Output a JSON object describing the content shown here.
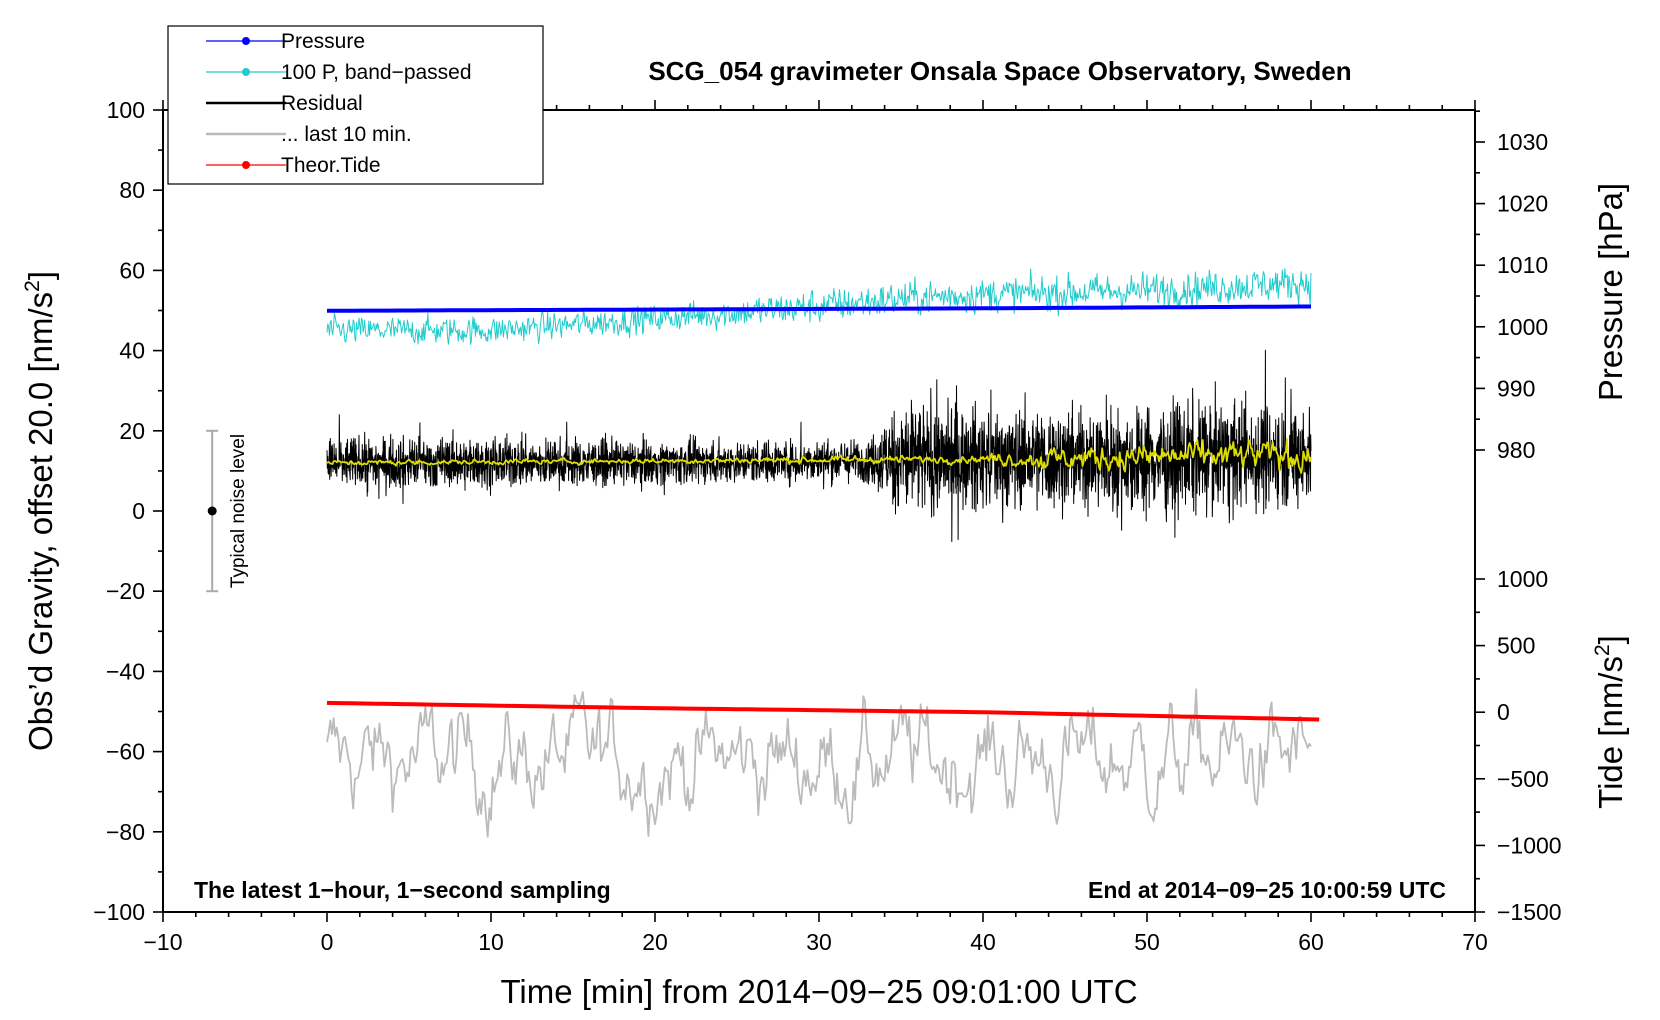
{
  "chart_data": {
    "type": "line",
    "title": "SCG_054 gravimeter Onsala Space Observatory, Sweden",
    "xlabel": "Time [min] from 2014−09−25 09:01:00 UTC",
    "ylabel_left": "Obs’d Gravity, offset 20.0 [nm/s²]",
    "ylabel_left_main": "Obs’d Gravity, offset 20.0 [nm/s",
    "ylabel_left_sup": "2",
    "ylabel_left_tail": "]",
    "ylabel_right_pressure": "Pressure [hPa]",
    "ylabel_right_tide_main": "Tide [nm/s",
    "ylabel_right_tide_sup": "2",
    "ylabel_right_tide_tail": "]",
    "xlim": [
      -10,
      70
    ],
    "ylim_left": [
      -100,
      100
    ],
    "x_ticks": [
      -10,
      0,
      10,
      20,
      30,
      40,
      50,
      60,
      70
    ],
    "x_tick_labels": [
      "−10",
      "0",
      "10",
      "20",
      "30",
      "40",
      "50",
      "60",
      "70"
    ],
    "y_left_ticks": [
      100,
      80,
      60,
      40,
      20,
      0,
      -20,
      -40,
      -60,
      -80,
      -100
    ],
    "y_left_tick_labels": [
      "100",
      "80",
      "60",
      "40",
      "20",
      "0",
      "−20",
      "−40",
      "−60",
      "−80",
      "−100"
    ],
    "pressure_ticks": [
      1030,
      1020,
      1010,
      1000,
      990,
      980
    ],
    "pressure_tick_labels": [
      "1030",
      "1020",
      "1010",
      "1000",
      "990",
      "980"
    ],
    "tide_ticks": [
      1000,
      500,
      0,
      -500,
      -1000,
      -1500
    ],
    "tide_tick_labels": [
      "1000",
      "500",
      "0",
      "−500",
      "−1000",
      "−1500"
    ],
    "annotations": {
      "left_note": "The latest 1−hour, 1−second sampling",
      "right_note": "End at 2014−09−25 10:00:59 UTC",
      "noise_label": "Typical noise level",
      "noise_bar": {
        "x": -7,
        "center": 0,
        "low": -20,
        "high": 20
      }
    },
    "legend": {
      "position": "top-left",
      "entries": [
        {
          "label": "Pressure",
          "color": "#0000ff",
          "style": "line-dot"
        },
        {
          "label": "100 P, band−passed",
          "color": "#22cccc",
          "style": "line-dot"
        },
        {
          "label": "Residual",
          "color": "#000000",
          "style": "line"
        },
        {
          "label": "... last 10 min.",
          "color": "#bbbbbb",
          "style": "line"
        },
        {
          "label": "Theor.Tide",
          "color": "#ff0000",
          "style": "line-dot"
        }
      ]
    },
    "series": [
      {
        "name": "Pressure",
        "axis": "pressure_hPa",
        "color": "#0000ff",
        "kind": "trend",
        "x": [
          0,
          20,
          40,
          60
        ],
        "y": [
          1002.6,
          1002.8,
          1003.0,
          1003.3
        ]
      },
      {
        "name": "100 P, band-passed",
        "axis": "gravity",
        "color": "#22cccc",
        "kind": "noisy",
        "x": [
          0,
          10,
          20,
          30,
          35,
          40,
          50,
          60
        ],
        "y": [
          45,
          45,
          48,
          51,
          53,
          54,
          55,
          57
        ],
        "amplitude": [
          4,
          4,
          4,
          5,
          5,
          5,
          5,
          5
        ]
      },
      {
        "name": "Residual",
        "axis": "gravity",
        "color": "#000000",
        "kind": "noisy",
        "x": [
          0,
          10,
          20,
          30,
          33,
          35,
          40,
          45,
          50,
          55,
          60
        ],
        "y": [
          12,
          12,
          12,
          12.5,
          12.5,
          13,
          13,
          13,
          13,
          13.5,
          14
        ],
        "amplitude": [
          6,
          6,
          5,
          5,
          5,
          14,
          12,
          12,
          13,
          13,
          12
        ]
      },
      {
        "name": "Residual smoothed",
        "axis": "gravity",
        "color": "#dddd00",
        "kind": "noisy",
        "x": [
          0,
          20,
          40,
          43.5,
          50,
          60
        ],
        "y": [
          12,
          12.5,
          13,
          13,
          13.5,
          14
        ],
        "amplitude": [
          1,
          1,
          1.5,
          4,
          5,
          6
        ]
      },
      {
        "name": "... last 10 min.",
        "axis": "gravity",
        "color": "#bbbbbb",
        "kind": "noisy",
        "x": [
          0,
          30,
          60
        ],
        "y": [
          -62,
          -62,
          -62
        ],
        "amplitude": [
          16,
          16,
          16
        ]
      },
      {
        "name": "Theor.Tide",
        "axis": "tide",
        "color": "#ff0000",
        "kind": "trend",
        "x": [
          0,
          20,
          40,
          60.5
        ],
        "y": [
          70,
          30,
          0,
          -55
        ]
      }
    ]
  }
}
